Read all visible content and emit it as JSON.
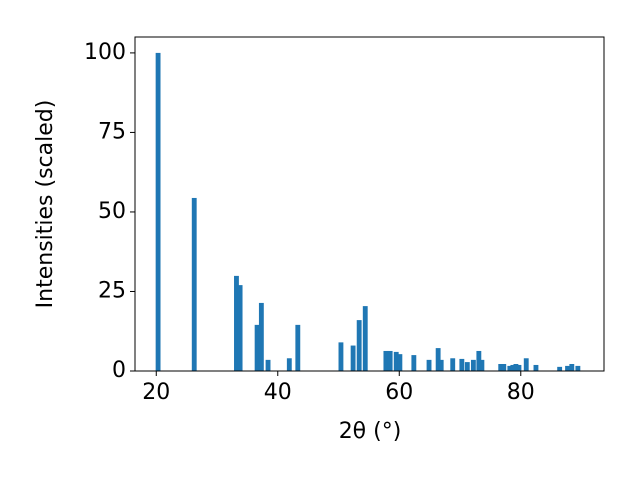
{
  "chart_data": {
    "type": "bar",
    "xlabel": "2θ (°)",
    "ylabel": "Intensities (scaled)",
    "x": [
      20.3,
      26.25,
      33.2,
      33.8,
      36.6,
      36.8,
      37.3,
      38.4,
      41.9,
      43.3,
      50.4,
      52.4,
      53.4,
      54.4,
      57.8,
      58.5,
      59.5,
      60.1,
      62.4,
      64.9,
      66.4,
      66.9,
      68.8,
      70.3,
      71.2,
      72.2,
      73.1,
      73.6,
      76.7,
      77.2,
      78.2,
      78.7,
      79.2,
      79.7,
      80.9,
      82.5,
      86.4,
      87.7,
      88.4,
      89.4
    ],
    "values": [
      100,
      54.4,
      29.9,
      27,
      14.5,
      7,
      21.4,
      3.5,
      4,
      14.5,
      9,
      8,
      16,
      20.4,
      6.3,
      6.3,
      6,
      5.3,
      5,
      3.5,
      7.2,
      3.5,
      4,
      3.8,
      2.8,
      3.5,
      6.3,
      3.5,
      2.2,
      2.2,
      1.6,
      1.9,
      2.2,
      1.9,
      4,
      1.9,
      1.3,
      1.6,
      2.2,
      1.6
    ],
    "color": "#1f77b4",
    "xlim": [
      16.5,
      93.7
    ],
    "xticks": [
      20,
      40,
      60,
      80
    ],
    "ylim": [
      0,
      105
    ],
    "yticks": [
      0,
      25,
      50,
      75,
      100
    ],
    "grid": false
  }
}
